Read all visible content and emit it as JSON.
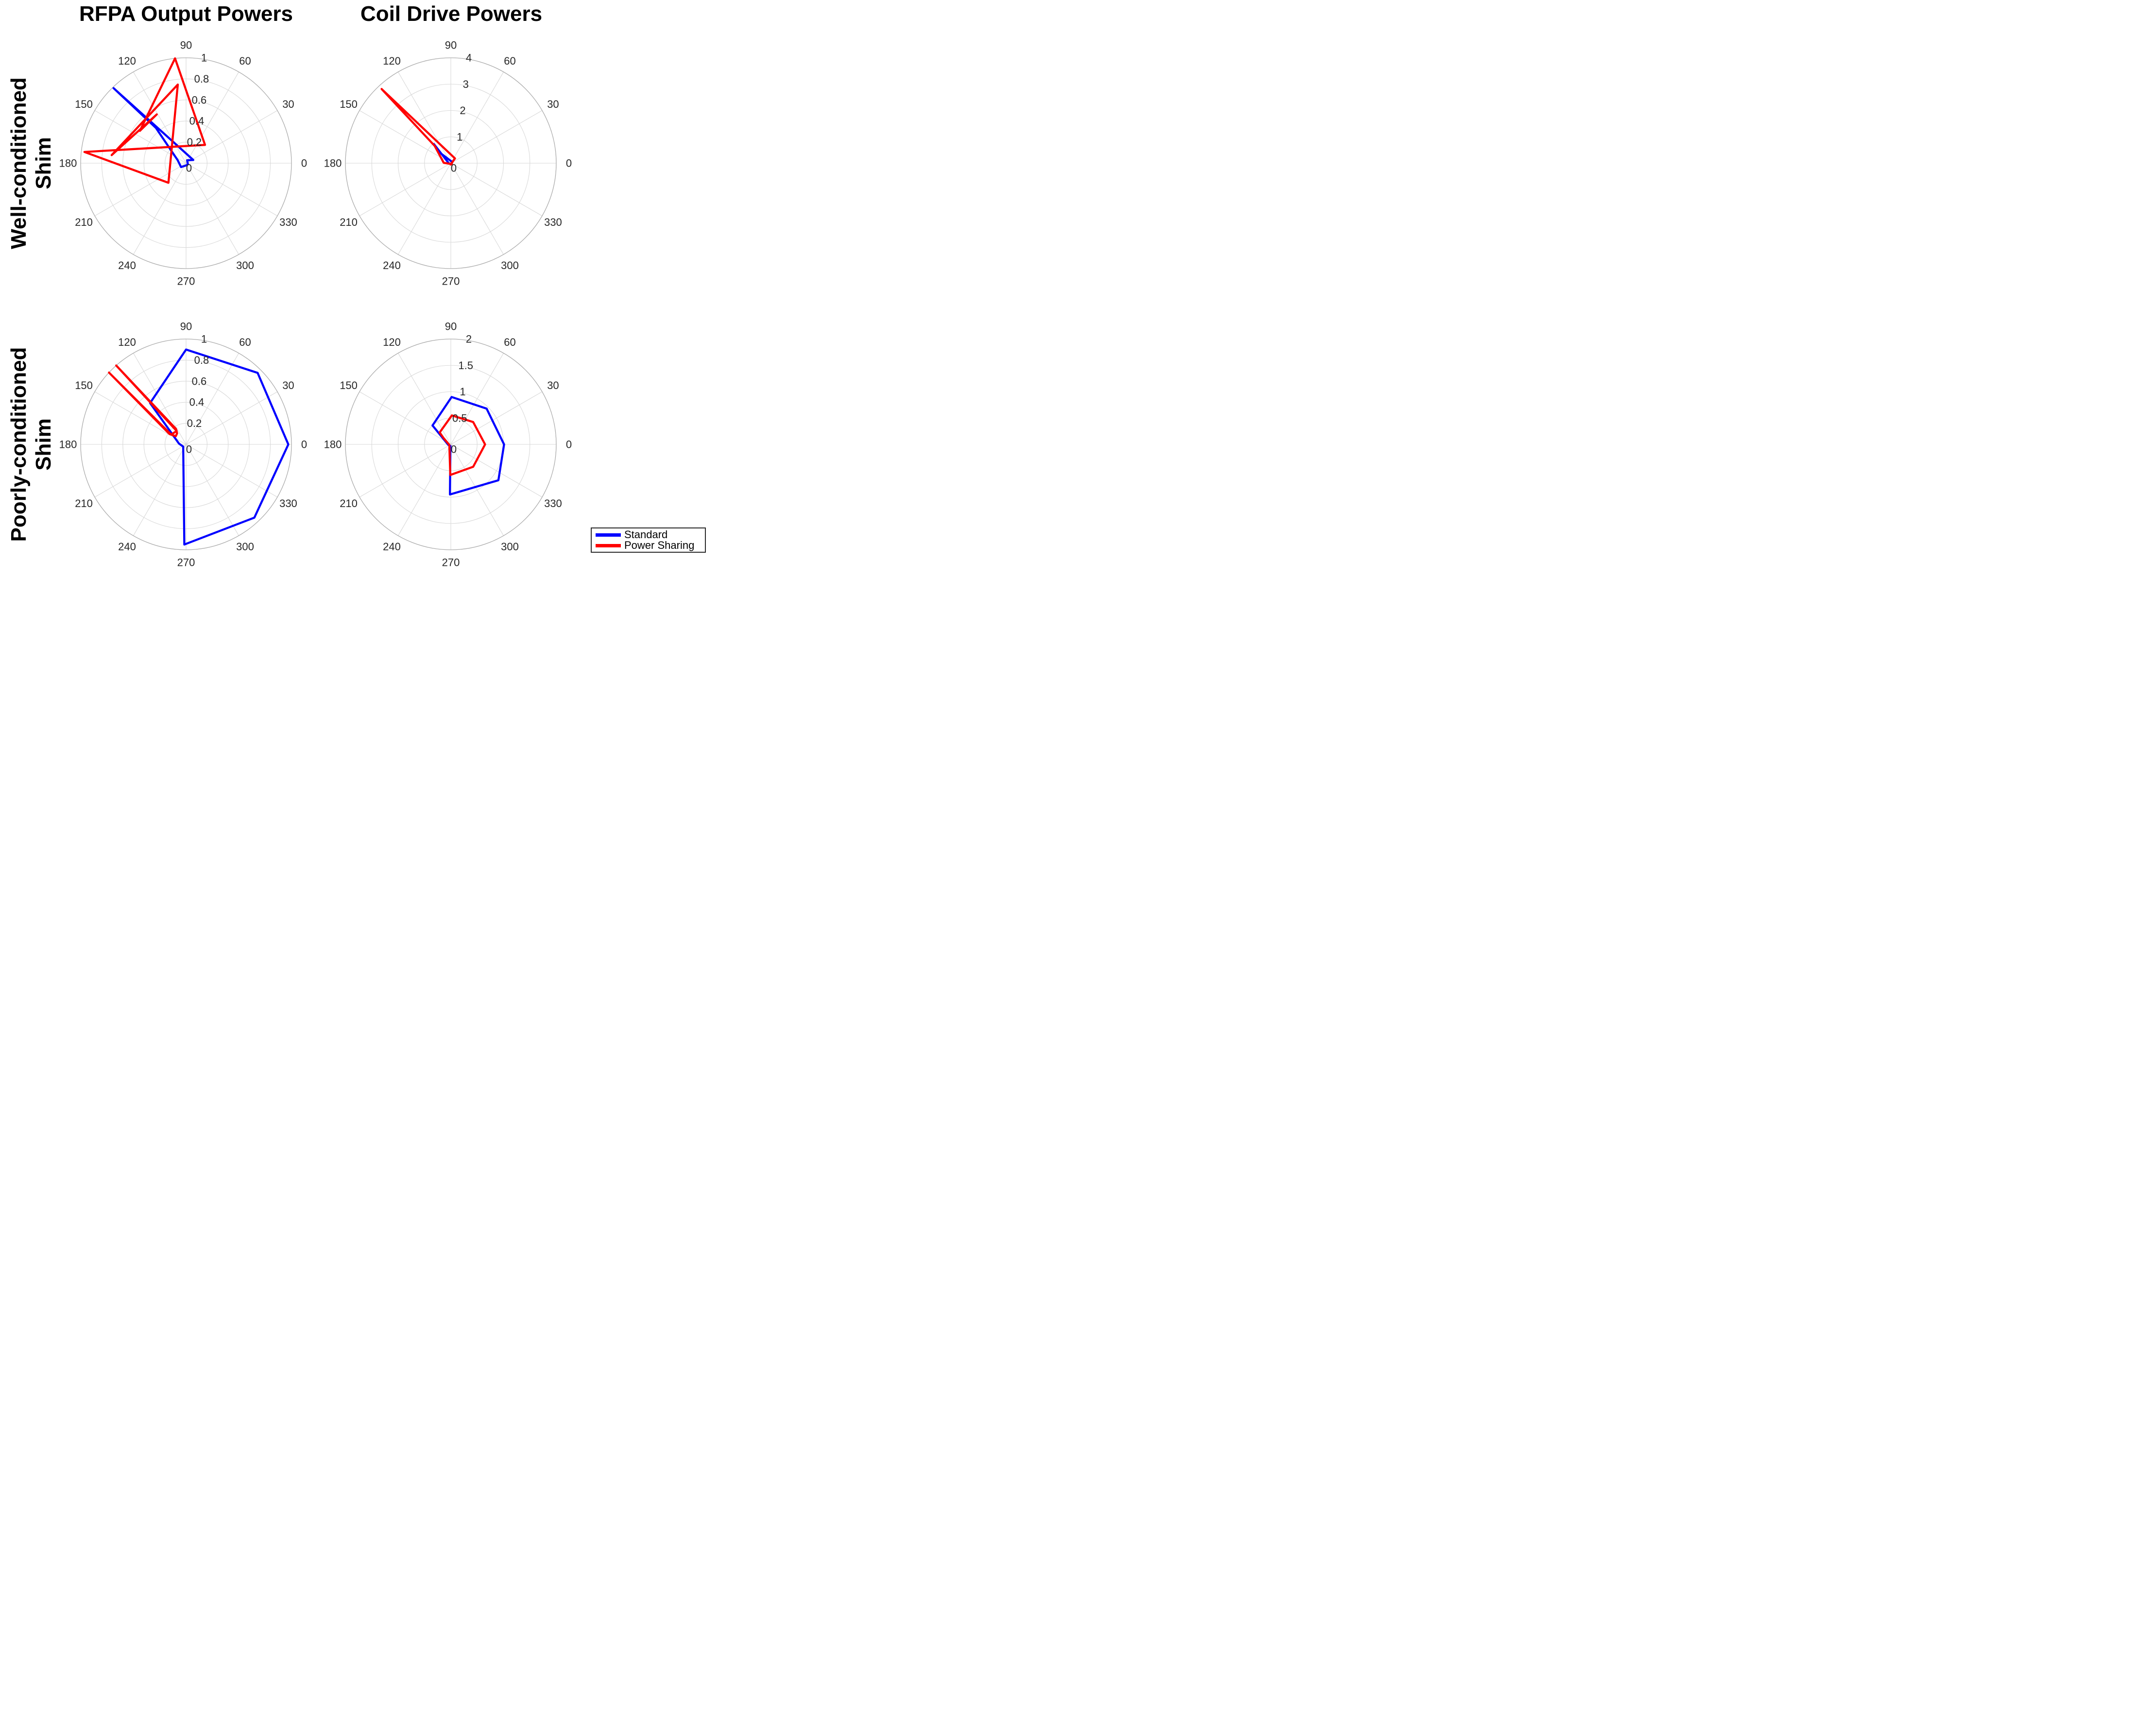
{
  "figure": {
    "titles": {
      "col1": "RFPA Output Powers",
      "col2": "Coil Drive Powers"
    },
    "row_labels": {
      "row1_line1": "Well-conditioned",
      "row1_line2": "Shim",
      "row2_line1": "Poorly-conditioned",
      "row2_line2": "Shim"
    },
    "legend": {
      "items": [
        {
          "label": "Standard",
          "color_key": "standard"
        },
        {
          "label": "Power Sharing",
          "color_key": "power_sharing"
        }
      ]
    },
    "colors": {
      "standard": "#0000FF",
      "power_sharing": "#FF0000",
      "grid": "#D9D9D9",
      "outer_ring": "#ABABAB",
      "tick_text": "#262626"
    }
  },
  "chart_data": [
    {
      "id": "well-rfpa",
      "type": "line",
      "projection": "polar",
      "row": "Well-conditioned Shim",
      "column": "RFPA Output Powers",
      "theta_unit": "degrees",
      "theta_ticks": [
        0,
        30,
        60,
        90,
        120,
        150,
        180,
        210,
        240,
        270,
        300,
        330
      ],
      "r_max": 1,
      "r_ticks": [
        0.2,
        0.4,
        0.6,
        0.8,
        1
      ],
      "r_tick_labels": [
        "0.2",
        "0.4",
        "0.6",
        "0.8",
        "1"
      ],
      "r_zero_label": "0",
      "series": [
        {
          "name": "Standard",
          "color_key": "standard",
          "points": [
            [
              24,
              0.075
            ],
            [
              134,
              0.99
            ],
            [
              130.5,
              0.44
            ],
            [
              160,
              0.085
            ],
            [
              218,
              0.06
            ],
            [
              287,
              0.02
            ],
            [
              330,
              0.02
            ],
            [
              70,
              0.03
            ]
          ]
        },
        {
          "name": "Power Sharing",
          "color_key": "power_sharing",
          "points": [
            [
              96,
              1.0
            ],
            [
              44,
              0.25
            ],
            [
              173.7,
              0.97
            ],
            [
              228,
              0.25
            ],
            [
              96,
              0.75
            ],
            [
              173.8,
              0.71
            ],
            [
              121,
              0.54
            ],
            [
              145,
              0.535
            ]
          ]
        }
      ]
    },
    {
      "id": "well-coil",
      "type": "line",
      "projection": "polar",
      "row": "Well-conditioned Shim",
      "column": "Coil Drive Powers",
      "theta_unit": "degrees",
      "theta_ticks": [
        0,
        30,
        60,
        90,
        120,
        150,
        180,
        210,
        240,
        270,
        300,
        330
      ],
      "r_max": 4,
      "r_ticks": [
        1,
        2,
        3,
        4
      ],
      "r_tick_labels": [
        "1",
        "2",
        "3",
        "4"
      ],
      "r_zero_label": "0",
      "series": [
        {
          "name": "Standard",
          "color_key": "standard",
          "points": [
            [
              190,
              0.07
            ],
            [
              131.5,
              0.97
            ],
            [
              136,
              0.55
            ],
            [
              66,
              0.07
            ],
            [
              20,
              0.05
            ],
            [
              330,
              0.03
            ],
            [
              270,
              0.03
            ],
            [
              215,
              0.04
            ]
          ]
        },
        {
          "name": "Power Sharing",
          "color_key": "power_sharing",
          "points": [
            [
              177,
              0.27
            ],
            [
              133,
              0.9
            ],
            [
              133,
              3.85
            ],
            [
              49,
              0.24
            ],
            [
              263,
              0.05
            ],
            [
              300,
              0.05
            ],
            [
              350,
              0.04
            ],
            [
              240,
              0.03
            ]
          ]
        }
      ]
    },
    {
      "id": "poor-rfpa",
      "type": "line",
      "projection": "polar",
      "row": "Poorly-conditioned Shim",
      "column": "RFPA Output Powers",
      "theta_unit": "degrees",
      "theta_ticks": [
        0,
        30,
        60,
        90,
        120,
        150,
        180,
        210,
        240,
        270,
        300,
        330
      ],
      "r_max": 1,
      "r_ticks": [
        0.2,
        0.4,
        0.6,
        0.8,
        1
      ],
      "r_tick_labels": [
        "0.2",
        "0.4",
        "0.6",
        "0.8",
        "1"
      ],
      "r_zero_label": "0",
      "series": [
        {
          "name": "Standard",
          "color_key": "standard",
          "points": [
            [
              90,
              0.9
            ],
            [
              45,
              0.96
            ],
            [
              0,
              0.97
            ],
            [
              313,
              0.95
            ],
            [
              269,
              0.95
            ],
            [
              217,
              0.034
            ],
            [
              173,
              0.068
            ],
            [
              131,
              0.52
            ]
          ]
        },
        {
          "name": "Power Sharing",
          "color_key": "power_sharing",
          "points": [
            [
              123,
              0.175
            ],
            [
              131.5,
              1.0
            ],
            [
              125,
              0.155
            ],
            [
              146.5,
              0.17
            ],
            [
              137,
              1.0
            ],
            [
              148,
              0.185
            ],
            [
              141,
              0.125
            ],
            [
              129,
              0.135
            ]
          ]
        }
      ]
    },
    {
      "id": "poor-coil",
      "type": "line",
      "projection": "polar",
      "row": "Poorly-conditioned Shim",
      "column": "Coil Drive Powers",
      "theta_unit": "degrees",
      "theta_ticks": [
        0,
        30,
        60,
        90,
        120,
        150,
        180,
        210,
        240,
        270,
        300,
        330
      ],
      "r_max": 2,
      "r_ticks": [
        0.5,
        1,
        1.5,
        2
      ],
      "r_tick_labels": [
        "0.5",
        "1",
        "1.5",
        "2"
      ],
      "r_zero_label": "0",
      "series": [
        {
          "name": "Standard",
          "color_key": "standard",
          "points": [
            [
              89,
              0.9
            ],
            [
              45,
              0.96
            ],
            [
              0,
              1.01
            ],
            [
              323,
              1.13
            ],
            [
              269,
              0.95
            ],
            [
              255,
              0.03
            ],
            [
              188,
              0.05
            ],
            [
              134,
              0.5
            ]
          ]
        },
        {
          "name": "Power Sharing",
          "color_key": "power_sharing",
          "points": [
            [
              88,
              0.55
            ],
            [
              45,
              0.6
            ],
            [
              0,
              0.65
            ],
            [
              315,
              0.6
            ],
            [
              269,
              0.58
            ],
            [
              197,
              0.03
            ],
            [
              139,
              0.18
            ],
            [
              133,
              0.31
            ]
          ]
        }
      ]
    }
  ]
}
